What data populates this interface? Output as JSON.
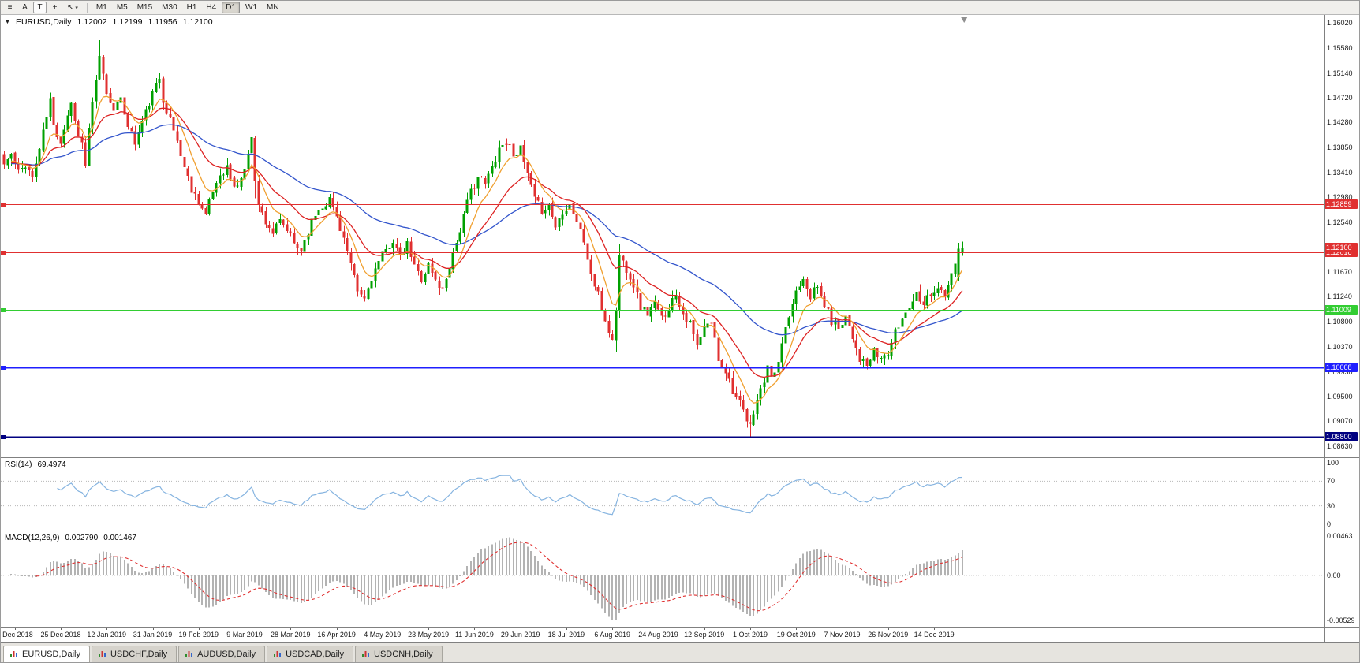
{
  "toolbar": {
    "tools": [
      {
        "name": "charts-list-icon",
        "glyph": "≡"
      },
      {
        "name": "annotate-text-button",
        "glyph": "A"
      },
      {
        "name": "text-box-button",
        "glyph": "T",
        "boxed": true
      },
      {
        "name": "crosshair-button",
        "glyph": "+"
      },
      {
        "name": "cursor-tool-button",
        "glyph": "↖",
        "caret": "▾"
      }
    ],
    "timeframes": [
      {
        "label": "M1"
      },
      {
        "label": "M5"
      },
      {
        "label": "M15"
      },
      {
        "label": "M30"
      },
      {
        "label": "H1"
      },
      {
        "label": "H4"
      },
      {
        "label": "D1",
        "active": true
      },
      {
        "label": "W1"
      },
      {
        "label": "MN"
      }
    ]
  },
  "chart_data": {
    "type": "candlestick",
    "symbol_period": "EURUSD,Daily",
    "collapse_icon": "▼",
    "ohlc": {
      "open": "1.12002",
      "high": "1.12199",
      "low": "1.11956",
      "close": "1.12100"
    },
    "price_axis": {
      "top": 1.1602,
      "bottom": 1.0863,
      "ticks": [
        "1.16020",
        "1.15580",
        "1.15140",
        "1.14720",
        "1.14280",
        "1.13850",
        "1.13410",
        "1.12980",
        "1.12540",
        "1.12100",
        "1.11670",
        "1.11240",
        "1.10800",
        "1.10370",
        "1.09930",
        "1.09500",
        "1.09070",
        "1.08630"
      ]
    },
    "bid": {
      "price": 1.121,
      "label": "1.12100",
      "color": "#e03030"
    },
    "levels": [
      {
        "price": 1.12859,
        "label": "1.12859",
        "color": "#e03030",
        "width": 1
      },
      {
        "price": 1.12018,
        "label": "1.12018",
        "color": "#e03030",
        "width": 1
      },
      {
        "price": 1.11009,
        "label": "1.11009",
        "color": "#32cd32",
        "width": 1.4
      },
      {
        "price": 1.10008,
        "label": "1.10008",
        "color": "#1f1fff",
        "width": 1.6
      },
      {
        "price": 1.088,
        "label": "1.08800",
        "color": "#000080",
        "width": 1.6
      }
    ],
    "x_labels": [
      {
        "text": "6 Dec 2018",
        "i": 3
      },
      {
        "text": "25 Dec 2018",
        "i": 16
      },
      {
        "text": "12 Jan 2019",
        "i": 29
      },
      {
        "text": "31 Jan 2019",
        "i": 42
      },
      {
        "text": "19 Feb 2019",
        "i": 55
      },
      {
        "text": "9 Mar 2019",
        "i": 68
      },
      {
        "text": "28 Mar 2019",
        "i": 81
      },
      {
        "text": "16 Apr 2019",
        "i": 94
      },
      {
        "text": "4 May 2019",
        "i": 107
      },
      {
        "text": "23 May 2019",
        "i": 120
      },
      {
        "text": "11 Jun 2019",
        "i": 133
      },
      {
        "text": "29 Jun 2019",
        "i": 146
      },
      {
        "text": "18 Jul 2019",
        "i": 159
      },
      {
        "text": "6 Aug 2019",
        "i": 172
      },
      {
        "text": "24 Aug 2019",
        "i": 185
      },
      {
        "text": "12 Sep 2019",
        "i": 198
      },
      {
        "text": "1 Oct 2019",
        "i": 211
      },
      {
        "text": "19 Oct 2019",
        "i": 224
      },
      {
        "text": "7 Nov 2019",
        "i": 237
      },
      {
        "text": "26 Nov 2019",
        "i": 250
      },
      {
        "text": "14 Dec 2019",
        "i": 263
      }
    ],
    "plot_fraction": 0.727,
    "colors": {
      "up": "#00a000",
      "down": "#e03030",
      "background": "#ffffff",
      "pane_border": "#808080",
      "grid_dotted": "#b8b8b8",
      "shift_marker": "#909090"
    },
    "moving_averages": [
      {
        "period": 55,
        "color": "#3355cc"
      },
      {
        "period": 20,
        "color": "#dd2222"
      },
      {
        "period": 8,
        "color": "#f0a030"
      }
    ],
    "candles": {
      "count": 272,
      "seed": 11,
      "noise": 0.0016,
      "wick": 0.0013,
      "anchors": [
        [
          0,
          1.1355
        ],
        [
          2,
          1.1372
        ],
        [
          4,
          1.134
        ],
        [
          6,
          1.1356
        ],
        [
          8,
          1.1332
        ],
        [
          10,
          1.1382
        ],
        [
          12,
          1.1438
        ],
        [
          13,
          1.1468
        ],
        [
          14,
          1.142
        ],
        [
          16,
          1.1396
        ],
        [
          18,
          1.1442
        ],
        [
          19,
          1.1464
        ],
        [
          20,
          1.143
        ],
        [
          22,
          1.1392
        ],
        [
          23,
          1.1352
        ],
        [
          24,
          1.142
        ],
        [
          26,
          1.1498
        ],
        [
          27,
          1.154
        ],
        [
          28,
          1.1516
        ],
        [
          29,
          1.1476
        ],
        [
          31,
          1.1456
        ],
        [
          33,
          1.1464
        ],
        [
          35,
          1.1426
        ],
        [
          37,
          1.1392
        ],
        [
          39,
          1.143
        ],
        [
          41,
          1.1462
        ],
        [
          43,
          1.1492
        ],
        [
          44,
          1.1506
        ],
        [
          45,
          1.147
        ],
        [
          47,
          1.1432
        ],
        [
          49,
          1.1396
        ],
        [
          51,
          1.135
        ],
        [
          53,
          1.1312
        ],
        [
          55,
          1.1292
        ],
        [
          57,
          1.1266
        ],
        [
          59,
          1.1308
        ],
        [
          61,
          1.1338
        ],
        [
          63,
          1.135
        ],
        [
          65,
          1.1312
        ],
        [
          67,
          1.133
        ],
        [
          69,
          1.1368
        ],
        [
          70,
          1.1408
        ],
        [
          71,
          1.1332
        ],
        [
          72,
          1.1282
        ],
        [
          74,
          1.1256
        ],
        [
          76,
          1.1236
        ],
        [
          78,
          1.1254
        ],
        [
          80,
          1.124
        ],
        [
          82,
          1.1216
        ],
        [
          84,
          1.1206
        ],
        [
          86,
          1.124
        ],
        [
          88,
          1.1268
        ],
        [
          90,
          1.1284
        ],
        [
          92,
          1.1294
        ],
        [
          94,
          1.1264
        ],
        [
          96,
          1.1226
        ],
        [
          98,
          1.1176
        ],
        [
          100,
          1.1132
        ],
        [
          102,
          1.112
        ],
        [
          104,
          1.1158
        ],
        [
          106,
          1.1184
        ],
        [
          108,
          1.1204
        ],
        [
          110,
          1.1224
        ],
        [
          112,
          1.119
        ],
        [
          114,
          1.1214
        ],
        [
          116,
          1.1176
        ],
        [
          118,
          1.1156
        ],
        [
          120,
          1.118
        ],
        [
          122,
          1.1152
        ],
        [
          124,
          1.1136
        ],
        [
          126,
          1.118
        ],
        [
          128,
          1.122
        ],
        [
          130,
          1.1264
        ],
        [
          132,
          1.1308
        ],
        [
          134,
          1.1334
        ],
        [
          136,
          1.132
        ],
        [
          138,
          1.135
        ],
        [
          140,
          1.1384
        ],
        [
          142,
          1.1394
        ],
        [
          144,
          1.1376
        ],
        [
          146,
          1.138
        ],
        [
          148,
          1.1336
        ],
        [
          150,
          1.1292
        ],
        [
          152,
          1.1276
        ],
        [
          154,
          1.1284
        ],
        [
          156,
          1.1246
        ],
        [
          158,
          1.1274
        ],
        [
          160,
          1.1286
        ],
        [
          162,
          1.1256
        ],
        [
          164,
          1.122
        ],
        [
          166,
          1.1162
        ],
        [
          168,
          1.1126
        ],
        [
          170,
          1.1082
        ],
        [
          172,
          1.1046
        ],
        [
          173,
          1.1104
        ],
        [
          174,
          1.1196
        ],
        [
          176,
          1.1174
        ],
        [
          178,
          1.1146
        ],
        [
          180,
          1.1106
        ],
        [
          182,
          1.1096
        ],
        [
          184,
          1.111
        ],
        [
          186,
          1.1086
        ],
        [
          188,
          1.1106
        ],
        [
          190,
          1.113
        ],
        [
          192,
          1.1096
        ],
        [
          194,
          1.1076
        ],
        [
          196,
          1.1036
        ],
        [
          198,
          1.1068
        ],
        [
          200,
          1.108
        ],
        [
          202,
          1.1016
        ],
        [
          204,
          1.0996
        ],
        [
          206,
          1.0962
        ],
        [
          208,
          1.0936
        ],
        [
          210,
          1.0906
        ],
        [
          211,
          1.0896
        ],
        [
          212,
          1.0926
        ],
        [
          214,
          1.096
        ],
        [
          216,
          1.0996
        ],
        [
          218,
          1.0986
        ],
        [
          220,
          1.1036
        ],
        [
          222,
          1.109
        ],
        [
          224,
          1.1136
        ],
        [
          226,
          1.116
        ],
        [
          228,
          1.1126
        ],
        [
          230,
          1.114
        ],
        [
          232,
          1.111
        ],
        [
          234,
          1.1082
        ],
        [
          236,
          1.1072
        ],
        [
          238,
          1.1092
        ],
        [
          240,
          1.1056
        ],
        [
          242,
          1.1016
        ],
        [
          244,
          1.1002
        ],
        [
          246,
          1.1026
        ],
        [
          248,
          1.1016
        ],
        [
          250,
          1.1026
        ],
        [
          252,
          1.106
        ],
        [
          254,
          1.1086
        ],
        [
          256,
          1.111
        ],
        [
          258,
          1.113
        ],
        [
          260,
          1.1116
        ],
        [
          262,
          1.113
        ],
        [
          264,
          1.114
        ],
        [
          266,
          1.1122
        ],
        [
          268,
          1.1162
        ],
        [
          270,
          1.1205
        ],
        [
          271,
          1.121
        ]
      ],
      "forced": [
        {
          "i": 27,
          "h": 1.1572
        },
        {
          "i": 44,
          "h": 1.1515
        },
        {
          "i": 70,
          "h": 1.1442
        },
        {
          "i": 71,
          "l": 1.1296
        },
        {
          "i": 141,
          "h": 1.1412
        },
        {
          "i": 173,
          "l": 1.1028
        },
        {
          "i": 174,
          "h": 1.1216
        },
        {
          "i": 211,
          "l": 1.0879
        },
        {
          "i": 270,
          "o": 1.1158,
          "c": 1.1208,
          "h": 1.1218,
          "l": 1.1152
        },
        {
          "i": 271,
          "o": 1.12002,
          "h": 1.12199,
          "l": 1.11956,
          "c": 1.121
        }
      ]
    },
    "indicators": {
      "rsi": {
        "label": "RSI(14)",
        "period": 14,
        "value": "69.4974",
        "color": "#86b4e0",
        "ticks": [
          {
            "text": "100",
            "v": 100
          },
          {
            "text": "70",
            "v": 70
          },
          {
            "text": "30",
            "v": 30
          },
          {
            "text": "0",
            "v": 0
          }
        ],
        "dotted_levels": [
          70,
          30
        ]
      },
      "macd": {
        "label": "MACD(12,26,9)",
        "fast": 12,
        "slow": 26,
        "signal": 9,
        "value_main": "0.002790",
        "value_signal": "0.001467",
        "bar_color": "#b3b3b3",
        "signal_color": "#e03030",
        "ticks": [
          {
            "text": "0.00463",
            "v": 0.00463
          },
          {
            "text": "0.00",
            "v": 0
          },
          {
            "text": "-0.00529",
            "v": -0.00529
          }
        ],
        "range": {
          "top": 0.00463,
          "bottom": -0.00529
        }
      }
    }
  },
  "tabs": {
    "items": [
      {
        "label": "EURUSD,Daily",
        "active": true
      },
      {
        "label": "USDCHF,Daily"
      },
      {
        "label": "AUDUSD,Daily"
      },
      {
        "label": "USDCAD,Daily"
      },
      {
        "label": "USDCNH,Daily"
      }
    ]
  }
}
